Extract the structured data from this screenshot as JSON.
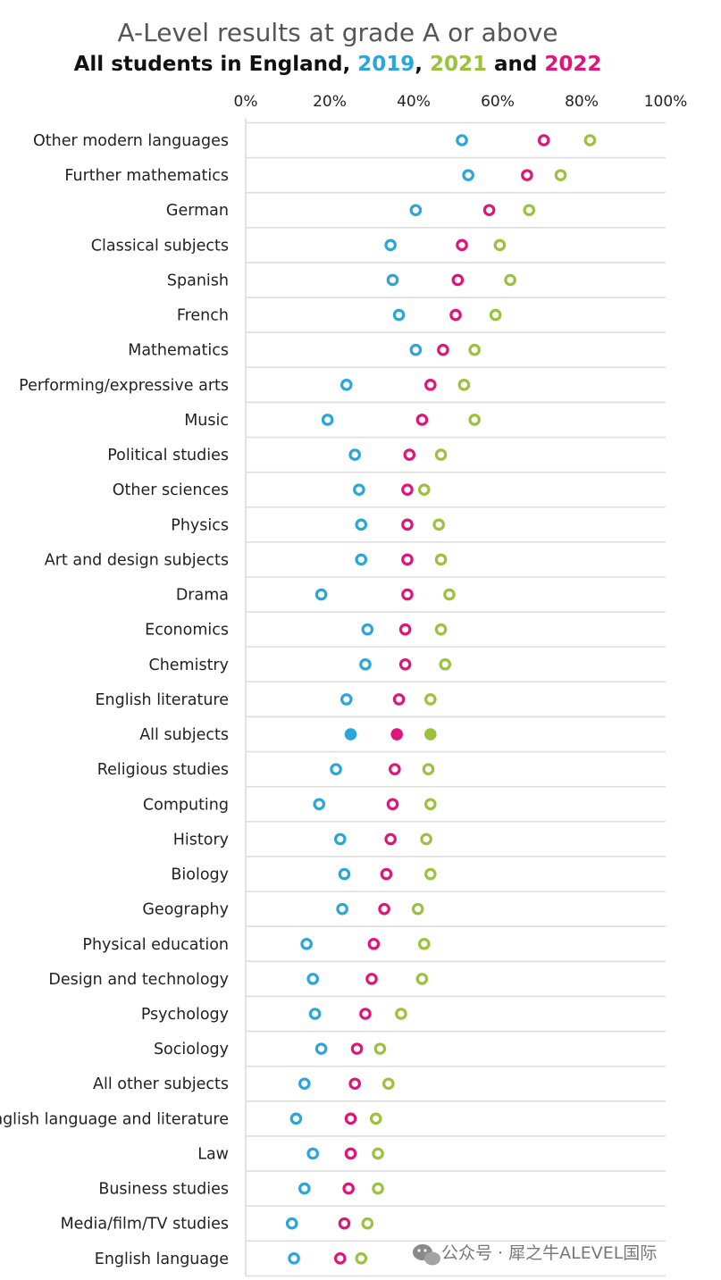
{
  "chart_data": {
    "type": "scatter",
    "title": "A-Level results at grade A or above",
    "subtitle_parts": [
      {
        "text": "All students in England, ",
        "color": "#111111"
      },
      {
        "text": "2019",
        "color": "#2aa6d8"
      },
      {
        "text": ", ",
        "color": "#111111"
      },
      {
        "text": "2021",
        "color": "#9bc23c"
      },
      {
        "text": " and ",
        "color": "#111111"
      },
      {
        "text": "2022",
        "color": "#e0157a"
      }
    ],
    "xlabel": "",
    "ylabel": "",
    "xlim": [
      0,
      100
    ],
    "x_ticks": [
      0,
      20,
      40,
      60,
      80,
      100
    ],
    "x_tick_labels": [
      "0%",
      "20%",
      "40%",
      "60%",
      "80%",
      "100%"
    ],
    "categories": [
      "Other modern languages",
      "Further mathematics",
      "German",
      "Classical subjects",
      "Spanish",
      "French",
      "Mathematics",
      "Performing/expressive arts",
      "Music",
      "Political studies",
      "Other sciences",
      "Physics",
      "Art and design subjects",
      "Drama",
      "Economics",
      "Chemistry",
      "English literature",
      "All subjects",
      "Religious studies",
      "Computing",
      "History",
      "Biology",
      "Geography",
      "Physical education",
      "Design and technology",
      "Psychology",
      "Sociology",
      "All other subjects",
      "English language and literature",
      "Law",
      "Business studies",
      "Media/film/TV studies",
      "English language"
    ],
    "highlight_category": "All subjects",
    "series": [
      {
        "name": "2019",
        "color": "#2aa6d8",
        "values": [
          51.5,
          53.0,
          40.5,
          34.5,
          35.0,
          36.5,
          40.5,
          24.0,
          19.5,
          26.0,
          27.0,
          27.5,
          27.5,
          18.0,
          29.0,
          28.5,
          24.0,
          25.0,
          21.5,
          17.5,
          22.5,
          23.5,
          23.0,
          14.5,
          16.0,
          16.5,
          18.0,
          14.0,
          12.0,
          16.0,
          14.0,
          11.0,
          11.5
        ]
      },
      {
        "name": "2021",
        "color": "#9bc23c",
        "values": [
          82.0,
          75.0,
          67.5,
          60.5,
          63.0,
          59.5,
          54.5,
          52.0,
          54.5,
          46.5,
          42.5,
          46.0,
          46.5,
          48.5,
          46.5,
          47.5,
          44.0,
          44.0,
          43.5,
          44.0,
          43.0,
          44.0,
          41.0,
          42.5,
          42.0,
          37.0,
          32.0,
          34.0,
          31.0,
          31.5,
          31.5,
          29.0,
          27.5
        ]
      },
      {
        "name": "2022",
        "color": "#e0157a",
        "values": [
          71.0,
          67.0,
          58.0,
          51.5,
          50.5,
          50.0,
          47.0,
          44.0,
          42.0,
          39.0,
          38.5,
          38.5,
          38.5,
          38.5,
          38.0,
          38.0,
          36.5,
          36.0,
          35.5,
          35.0,
          34.5,
          33.5,
          33.0,
          30.5,
          30.0,
          28.5,
          26.5,
          26.0,
          25.0,
          25.0,
          24.5,
          23.5,
          22.5
        ]
      }
    ]
  },
  "watermark": "公众号 · 犀之牛ALEVEL国际"
}
